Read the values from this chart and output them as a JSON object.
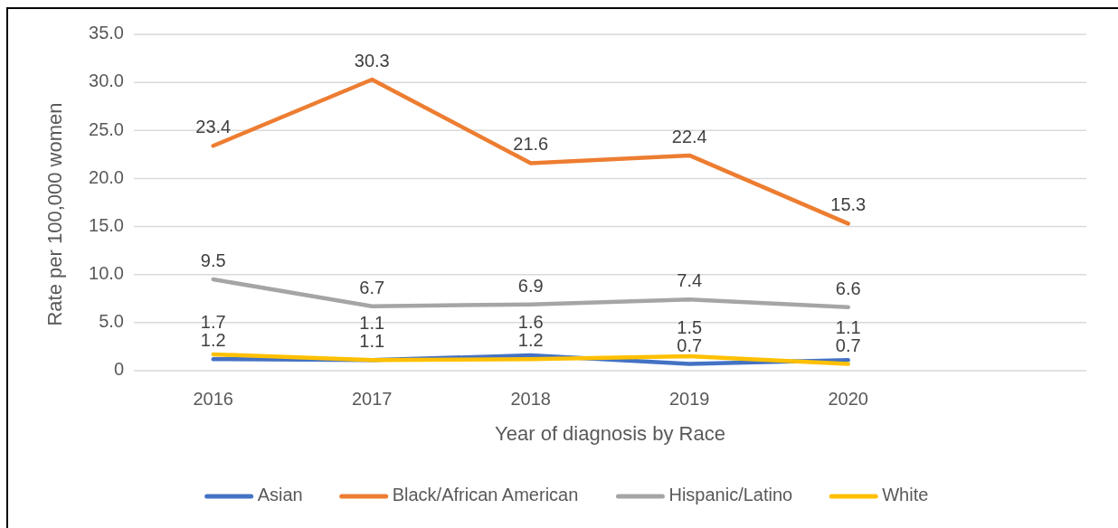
{
  "chart_data": {
    "type": "line",
    "xlabel": "Year of diagnosis by Race",
    "ylabel": "Rate per 100,000 women",
    "categories": [
      "2016",
      "2017",
      "2018",
      "2019",
      "2020",
      null
    ],
    "series": [
      {
        "name": "Asian",
        "color": "#4472c4",
        "values": [
          1.2,
          1.1,
          1.6,
          0.7,
          1.1,
          null
        ]
      },
      {
        "name": "Black/African American",
        "color": "#ed7d31",
        "values": [
          23.4,
          30.3,
          21.6,
          22.4,
          15.3,
          null
        ]
      },
      {
        "name": "Hispanic/Latino",
        "color": "#a5a5a5",
        "values": [
          9.5,
          6.7,
          6.9,
          7.4,
          6.6,
          null
        ]
      },
      {
        "name": "White",
        "color": "#ffc000",
        "values": [
          1.7,
          1.1,
          1.2,
          1.5,
          0.7,
          null
        ]
      }
    ],
    "ylim": [
      0,
      35
    ],
    "yticks": [
      0,
      {
        "value": 5,
        "label": "5.0"
      },
      {
        "value": 10,
        "label": "10.0"
      },
      {
        "value": 15,
        "label": "15.0"
      },
      {
        "value": 20,
        "label": "20.0"
      },
      {
        "value": 25,
        "label": "25.0"
      },
      {
        "value": 30,
        "label": "30.0"
      },
      {
        "value": 35,
        "label": "35.0"
      }
    ],
    "grid": "y",
    "legend": "bottom",
    "data_labels": true
  }
}
